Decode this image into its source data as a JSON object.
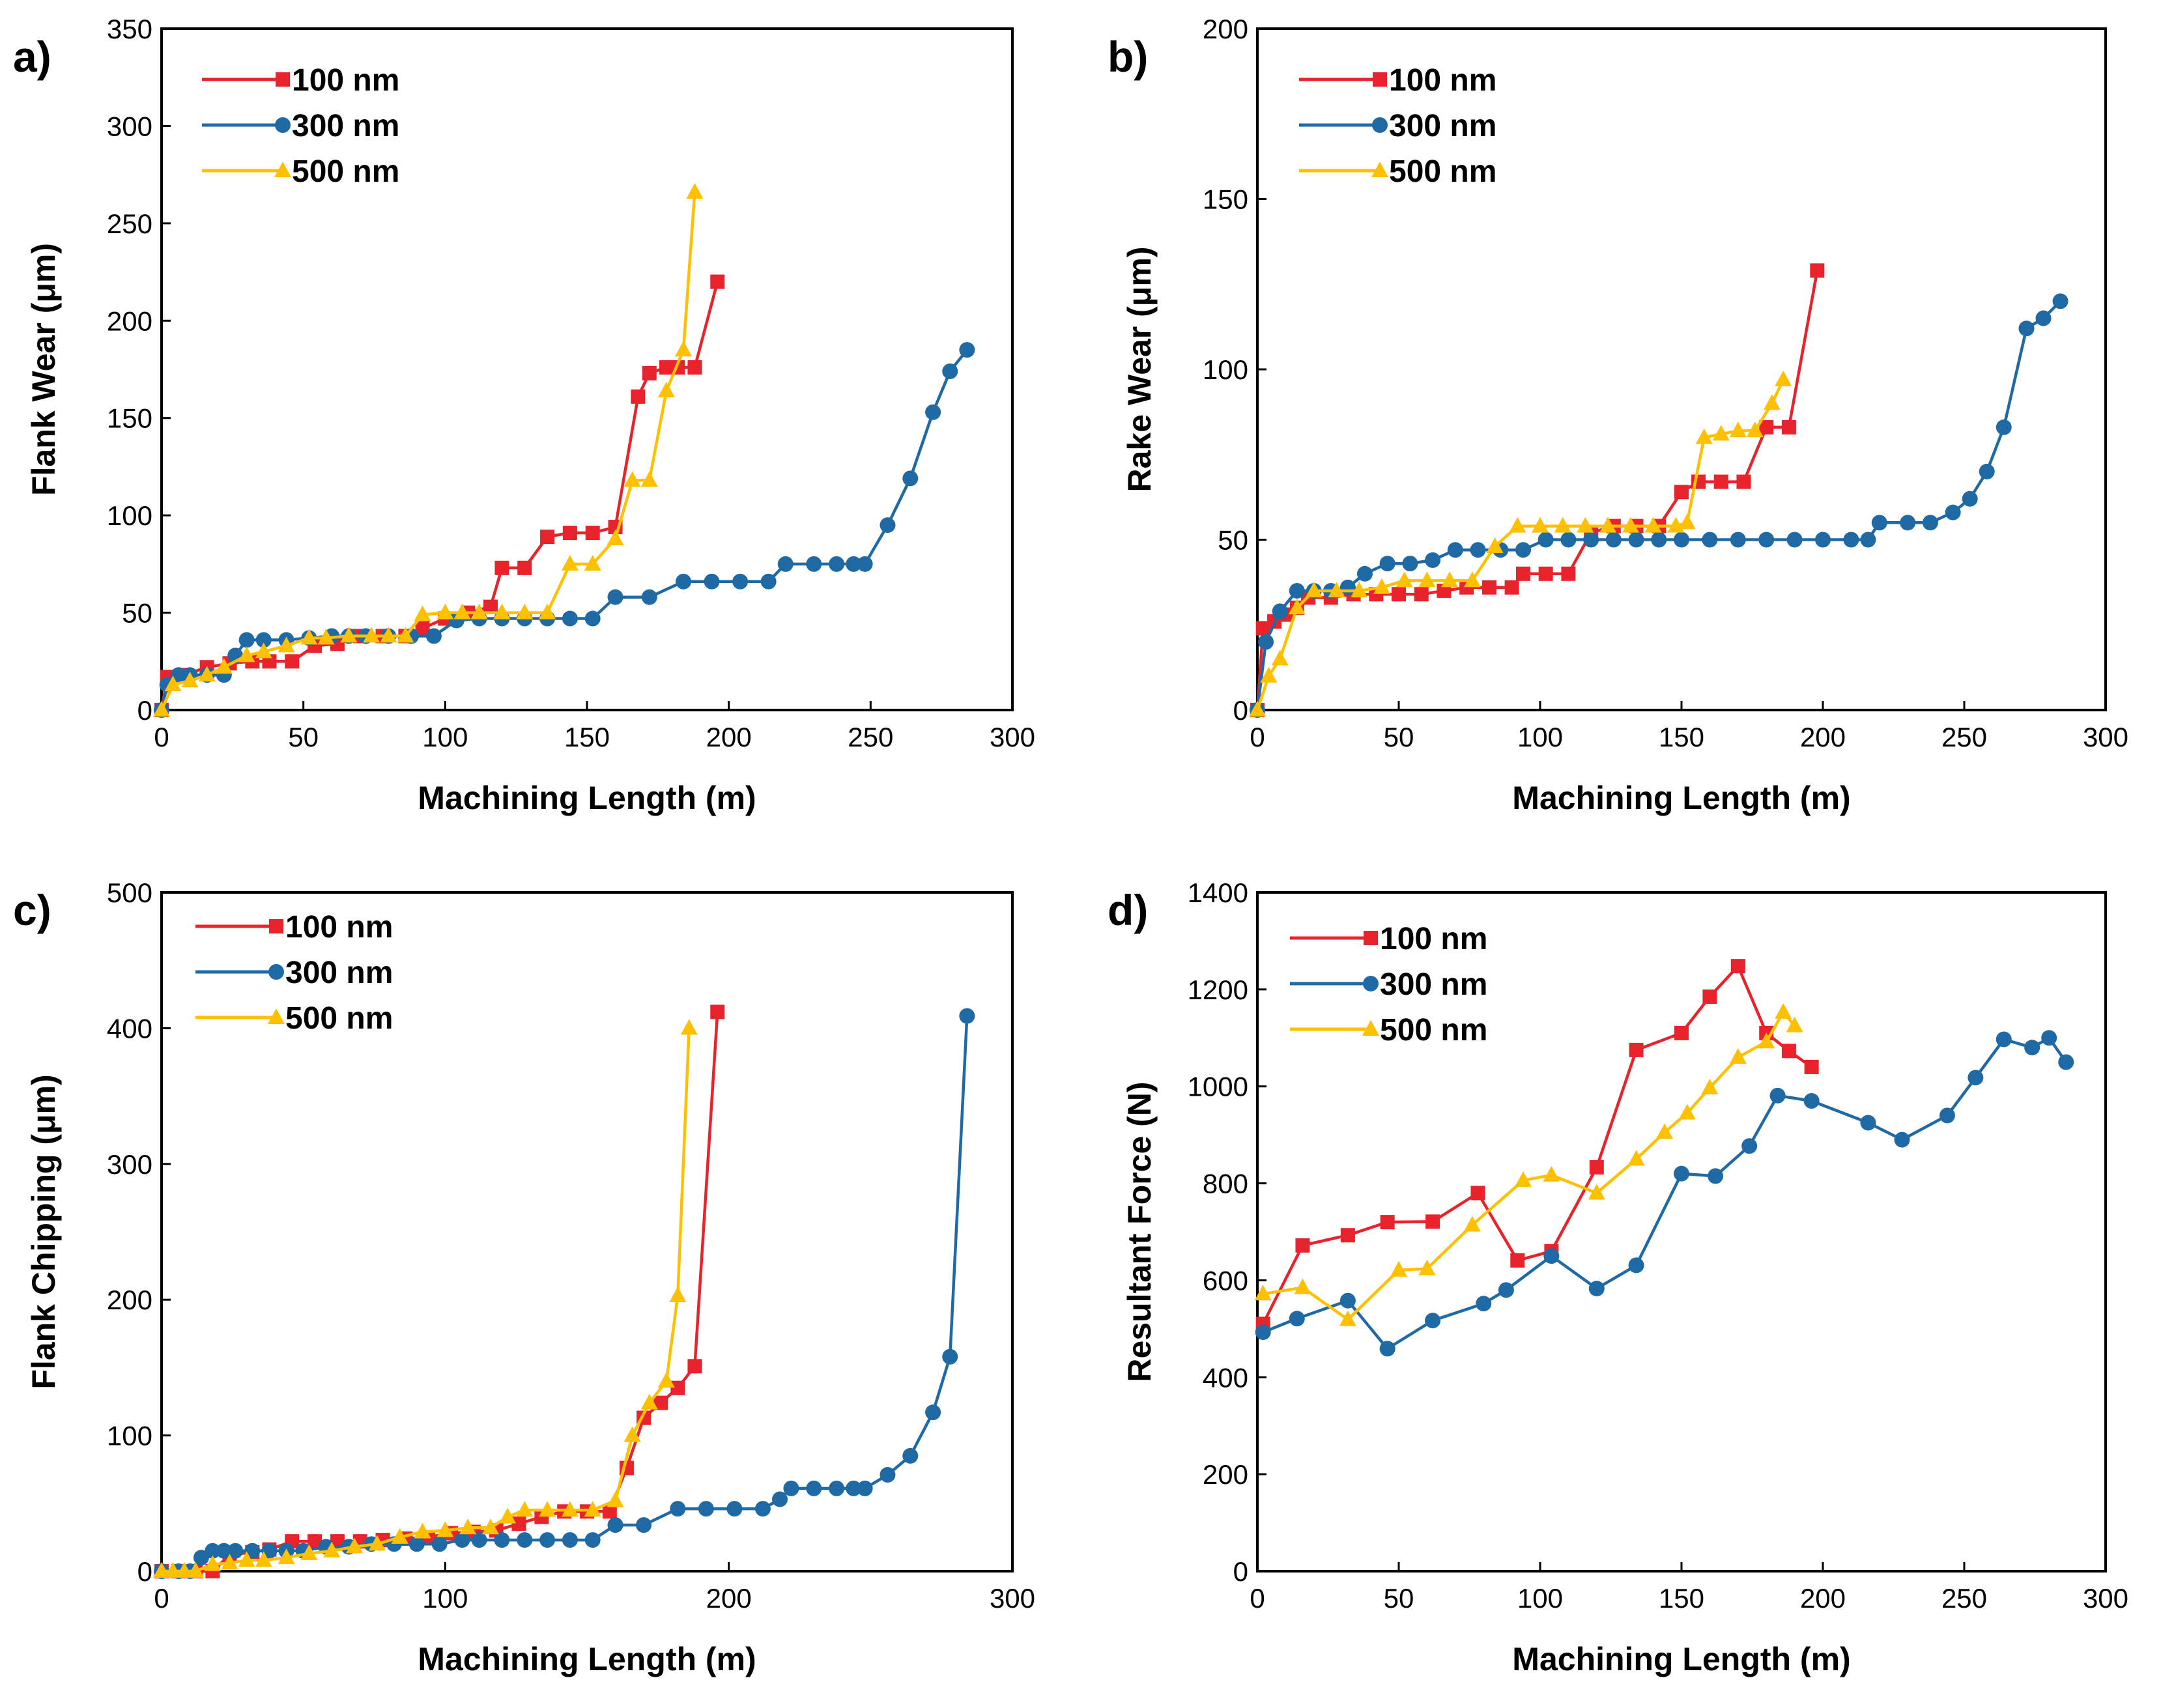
{
  "colors": {
    "100 nm": "#e8232b",
    "300 nm": "#1f6aa5",
    "500 nm": "#ffc000"
  },
  "chart_data": [
    {
      "id": "a",
      "panel_label": "a)",
      "type": "line",
      "xlabel": "Machining Length (m)",
      "ylabel": "Flank Wear (μm)",
      "xlim": [
        0,
        300
      ],
      "ylim": [
        0,
        350
      ],
      "xticks": [
        0,
        50,
        100,
        150,
        200,
        250,
        300
      ],
      "yticks": [
        0,
        50,
        100,
        150,
        200,
        250,
        300,
        350
      ],
      "legend": [
        "100 nm",
        "300 nm",
        "500 nm"
      ],
      "series": [
        {
          "name": "100 nm",
          "marker": "square",
          "x": [
            0,
            2,
            8,
            16,
            24,
            32,
            38,
            46,
            54,
            62,
            70,
            78,
            86,
            92,
            100,
            108,
            116,
            120,
            128,
            136,
            144,
            152,
            160,
            168,
            172,
            178,
            182,
            188,
            196
          ],
          "y": [
            0,
            17,
            18,
            22,
            24,
            25,
            25,
            25,
            33,
            34,
            38,
            38,
            38,
            42,
            47,
            50,
            53,
            73,
            73,
            89,
            91,
            91,
            94,
            161,
            173,
            176,
            176,
            176,
            220
          ]
        },
        {
          "name": "300 nm",
          "marker": "circle",
          "x": [
            0,
            2,
            6,
            10,
            16,
            22,
            26,
            30,
            36,
            44,
            52,
            60,
            66,
            72,
            80,
            88,
            96,
            104,
            112,
            120,
            128,
            136,
            144,
            152,
            160,
            172,
            184,
            194,
            204,
            214,
            220,
            230,
            238,
            244,
            248,
            256,
            264,
            272,
            278,
            284
          ],
          "y": [
            0,
            13,
            18,
            18,
            18,
            18,
            28,
            36,
            36,
            36,
            37,
            38,
            38,
            38,
            38,
            38,
            38,
            46,
            47,
            47,
            47,
            47,
            47,
            47,
            58,
            58,
            66,
            66,
            66,
            66,
            75,
            75,
            75,
            75,
            75,
            95,
            119,
            153,
            174,
            185
          ]
        },
        {
          "name": "500 nm",
          "marker": "triangle",
          "x": [
            0,
            4,
            10,
            16,
            22,
            30,
            36,
            44,
            52,
            58,
            66,
            74,
            80,
            86,
            92,
            100,
            106,
            112,
            120,
            128,
            136,
            144,
            152,
            160,
            166,
            172,
            178,
            184,
            188
          ],
          "y": [
            0,
            13,
            15,
            18,
            22,
            28,
            30,
            33,
            37,
            37,
            38,
            38,
            38,
            38,
            49,
            50,
            50,
            50,
            50,
            50,
            50,
            75,
            75,
            88,
            118,
            118,
            164,
            185,
            266
          ]
        }
      ]
    },
    {
      "id": "b",
      "panel_label": "b)",
      "type": "line",
      "xlabel": "Machining Length (m)",
      "ylabel": "Rake Wear (μm)",
      "xlim": [
        0,
        300
      ],
      "ylim": [
        0,
        200
      ],
      "xticks": [
        0,
        50,
        100,
        150,
        200,
        250,
        300
      ],
      "yticks": [
        0,
        50,
        100,
        150,
        200
      ],
      "legend": [
        "100 nm",
        "300 nm",
        "500 nm"
      ],
      "series": [
        {
          "name": "100 nm",
          "marker": "square",
          "x": [
            0,
            2,
            6,
            10,
            14,
            18,
            26,
            34,
            42,
            50,
            58,
            66,
            74,
            82,
            90,
            94,
            102,
            110,
            118,
            126,
            134,
            142,
            150,
            156,
            164,
            172,
            180,
            188,
            198
          ],
          "y": [
            0,
            24,
            26,
            28,
            30,
            33,
            33,
            34,
            34,
            34,
            34,
            35,
            36,
            36,
            36,
            40,
            40,
            40,
            52,
            54,
            54,
            54,
            64,
            67,
            67,
            67,
            83,
            83,
            129
          ]
        },
        {
          "name": "300 nm",
          "marker": "circle",
          "x": [
            0,
            3,
            8,
            14,
            20,
            26,
            32,
            38,
            46,
            54,
            62,
            70,
            78,
            86,
            94,
            102,
            110,
            118,
            126,
            134,
            142,
            150,
            160,
            170,
            180,
            190,
            200,
            210,
            216,
            220,
            230,
            238,
            246,
            252,
            258,
            264,
            272,
            278,
            284
          ],
          "y": [
            0,
            20,
            29,
            35,
            35,
            35,
            36,
            40,
            43,
            43,
            44,
            47,
            47,
            47,
            47,
            50,
            50,
            50,
            50,
            50,
            50,
            50,
            50,
            50,
            50,
            50,
            50,
            50,
            50,
            55,
            55,
            55,
            58,
            62,
            70,
            83,
            112,
            115,
            120
          ]
        },
        {
          "name": "500 nm",
          "marker": "triangle",
          "x": [
            0,
            4,
            8,
            14,
            20,
            28,
            36,
            44,
            52,
            60,
            68,
            76,
            84,
            92,
            100,
            108,
            116,
            124,
            132,
            140,
            148,
            152,
            158,
            164,
            170,
            176,
            182,
            186
          ],
          "y": [
            0,
            10,
            15,
            30,
            35,
            35,
            35,
            36,
            38,
            38,
            38,
            38,
            48,
            54,
            54,
            54,
            54,
            54,
            54,
            54,
            54,
            55,
            80,
            81,
            82,
            82,
            90,
            97
          ]
        }
      ]
    },
    {
      "id": "c",
      "panel_label": "c)",
      "type": "line",
      "xlabel": "Machining Length (m)",
      "ylabel": "Flank Chipping (μm)",
      "xlim": [
        0,
        300
      ],
      "ylim": [
        0,
        500
      ],
      "xticks": [
        0,
        100,
        200,
        300
      ],
      "yticks": [
        0,
        100,
        200,
        300,
        400,
        500
      ],
      "legend": [
        "100 nm",
        "300 nm",
        "500 nm"
      ],
      "series": [
        {
          "name": "100 nm",
          "marker": "square",
          "x": [
            0,
            6,
            12,
            18,
            24,
            32,
            38,
            46,
            54,
            62,
            70,
            78,
            86,
            94,
            102,
            110,
            118,
            126,
            134,
            142,
            150,
            158,
            164,
            170,
            176,
            182,
            188,
            196
          ],
          "y": [
            0,
            0,
            0,
            0,
            12,
            14,
            16,
            22,
            22,
            22,
            22,
            23,
            24,
            25,
            28,
            29,
            30,
            35,
            40,
            44,
            44,
            44,
            76,
            113,
            124,
            135,
            151,
            412
          ]
        },
        {
          "name": "300 nm",
          "marker": "circle",
          "x": [
            0,
            6,
            10,
            14,
            18,
            22,
            26,
            32,
            38,
            44,
            50,
            58,
            66,
            74,
            82,
            90,
            98,
            106,
            112,
            120,
            128,
            136,
            144,
            152,
            160,
            170,
            182,
            192,
            202,
            212,
            218,
            222,
            230,
            238,
            244,
            248,
            256,
            264,
            272,
            278,
            284
          ],
          "y": [
            0,
            0,
            0,
            10,
            15,
            15,
            15,
            15,
            15,
            15,
            15,
            18,
            18,
            20,
            20,
            20,
            20,
            23,
            23,
            23,
            23,
            23,
            23,
            23,
            34,
            34,
            46,
            46,
            46,
            46,
            53,
            61,
            61,
            61,
            61,
            61,
            71,
            85,
            117,
            158,
            409
          ]
        },
        {
          "name": "500 nm",
          "marker": "triangle",
          "x": [
            0,
            4,
            8,
            12,
            18,
            24,
            30,
            36,
            44,
            52,
            60,
            68,
            76,
            84,
            92,
            100,
            108,
            116,
            122,
            128,
            136,
            144,
            152,
            160,
            166,
            172,
            178,
            182,
            186
          ],
          "y": [
            0,
            0,
            0,
            0,
            5,
            6,
            8,
            8,
            10,
            13,
            15,
            18,
            20,
            25,
            29,
            30,
            32,
            32,
            40,
            45,
            45,
            45,
            45,
            52,
            100,
            124,
            140,
            203,
            400
          ]
        }
      ]
    },
    {
      "id": "d",
      "panel_label": "d)",
      "type": "line",
      "xlabel": "Machining Length (m)",
      "ylabel": "Resultant Force (N)",
      "xlim": [
        0,
        300
      ],
      "ylim": [
        0,
        1400
      ],
      "xticks": [
        0,
        50,
        100,
        150,
        200,
        250,
        300
      ],
      "yticks": [
        0,
        200,
        400,
        600,
        800,
        1000,
        1200,
        1400
      ],
      "legend": [
        "100 nm",
        "300 nm",
        "500 nm"
      ],
      "series": [
        {
          "name": "100 nm",
          "marker": "square",
          "x": [
            2,
            16,
            32,
            46,
            62,
            78,
            92,
            104,
            120,
            134,
            150,
            160,
            170,
            180,
            188,
            196
          ],
          "y": [
            510,
            672,
            693,
            720,
            721,
            780,
            641,
            660,
            833,
            1075,
            1110,
            1185,
            1248,
            1110,
            1073,
            1040
          ]
        },
        {
          "name": "300 nm",
          "marker": "circle",
          "x": [
            2,
            14,
            32,
            46,
            62,
            80,
            88,
            104,
            120,
            134,
            150,
            162,
            174,
            184,
            196,
            216,
            228,
            244,
            254,
            264,
            274,
            280,
            286
          ],
          "y": [
            493,
            521,
            558,
            459,
            517,
            552,
            580,
            650,
            583,
            631,
            820,
            815,
            877,
            981,
            970,
            925,
            890,
            940,
            1018,
            1097,
            1080,
            1100,
            1050
          ]
        },
        {
          "name": "500 nm",
          "marker": "triangle",
          "x": [
            2,
            16,
            32,
            50,
            60,
            76,
            94,
            104,
            120,
            134,
            144,
            152,
            160,
            170,
            180,
            186,
            190
          ],
          "y": [
            572,
            585,
            519,
            621,
            624,
            714,
            806,
            817,
            780,
            850,
            905,
            945,
            997,
            1060,
            1092,
            1153,
            1125
          ]
        }
      ]
    }
  ]
}
